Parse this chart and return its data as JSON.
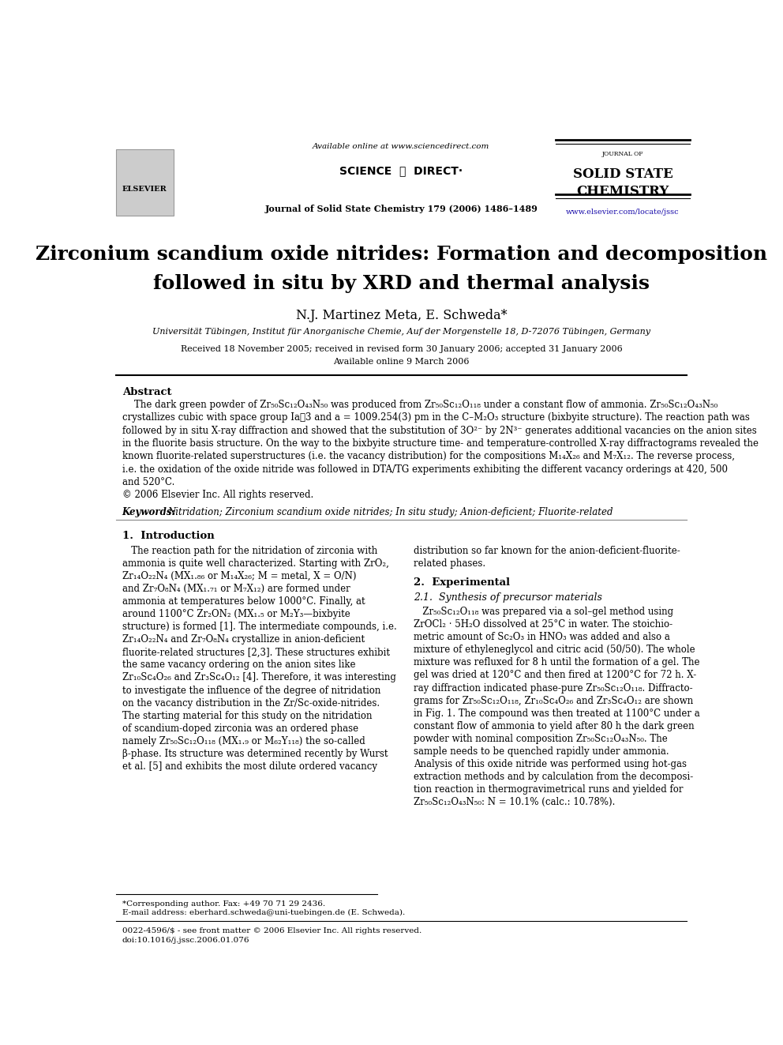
{
  "title_line1": "Zirconium scandium oxide nitrides: Formation and decomposition",
  "title_line2": "followed in situ by XRD and thermal analysis",
  "authors": "N.J. Martinez Meta, E. Schweda*",
  "affiliation": "Universität Tübingen, Institut für Anorganische Chemie, Auf der Morgenstelle 18, D-72076 Tübingen, Germany",
  "received": "Received 18 November 2005; received in revised form 30 January 2006; accepted 31 January 2006",
  "available_online": "Available online 9 March 2006",
  "header_center": "Available online at www.sciencedirect.com",
  "journal_ref": "Journal of Solid State Chemistry 179 (2006) 1486–1489",
  "journal_name_line1": "JOURNAL OF",
  "journal_name_line2": "SOLID STATE",
  "journal_name_line3": "CHEMISTRY",
  "elsevier_url": "www.elsevier.com/locate/jssc",
  "abstract_title": "Abstract",
  "keywords_label": "Keywords:",
  "keywords_text": "Nitridation; Zirconium scandium oxide nitrides; In situ study; Anion-deficient; Fluorite-related",
  "section1_title": "1.  Introduction",
  "section2_title": "2.  Experimental",
  "section2_sub": "2.1.  Synthesis of precursor materials",
  "footnote1": "*Corresponding author. Fax: +49 70 71 29 2436.",
  "footnote2": "E-mail address: eberhard.schweda@uni-tuebingen.de (E. Schweda).",
  "footnote3": "0022-4596/$ - see front matter © 2006 Elsevier Inc. All rights reserved.",
  "footnote4": "doi:10.1016/j.jssc.2006.01.076",
  "bg_color": "#ffffff",
  "text_color": "#000000",
  "blue_color": "#1a0dab",
  "header_line_color": "#000000"
}
